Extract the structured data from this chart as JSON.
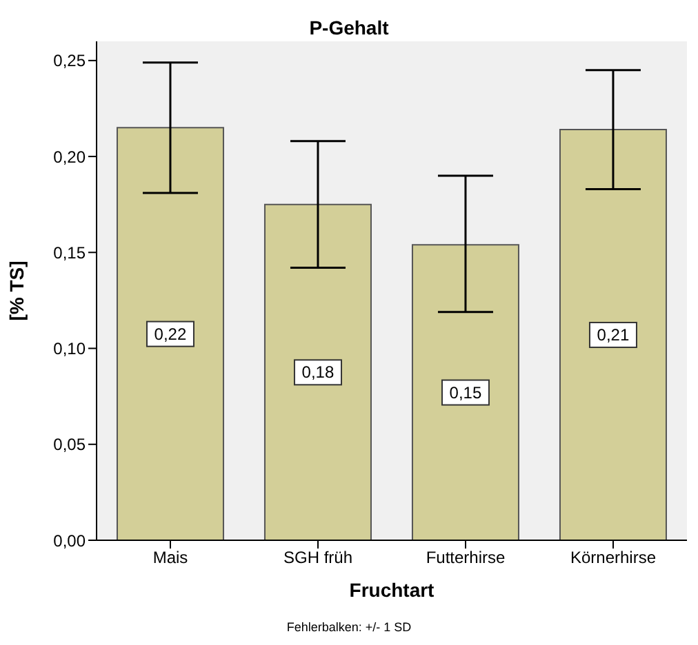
{
  "chart_data": {
    "type": "bar",
    "title": "P-Gehalt",
    "xlabel": "Fruchtart",
    "ylabel": "[% TS]",
    "categories": [
      "Mais",
      "SGH früh",
      "Futterhirse",
      "Körnerhirse"
    ],
    "values": [
      0.215,
      0.175,
      0.154,
      0.214
    ],
    "errors": [
      [
        0.181,
        0.249
      ],
      [
        0.142,
        0.208
      ],
      [
        0.119,
        0.19
      ],
      [
        0.183,
        0.245
      ]
    ],
    "value_labels": [
      "0,22",
      "0,18",
      "0,15",
      "0,21"
    ],
    "color": "#d3cf98",
    "ylim": [
      0,
      0.26
    ],
    "yticks": [
      {
        "value": 0,
        "label": "0,00"
      },
      {
        "value": 0.05,
        "label": "0,05"
      },
      {
        "value": 0.1,
        "label": "0,10"
      },
      {
        "value": 0.15,
        "label": "0,15"
      },
      {
        "value": 0.2,
        "label": "0,20"
      },
      {
        "value": 0.25,
        "label": "0,25"
      }
    ],
    "legend": false,
    "annotations": [
      "Fehlerbalken: +/- 1 SD"
    ]
  }
}
